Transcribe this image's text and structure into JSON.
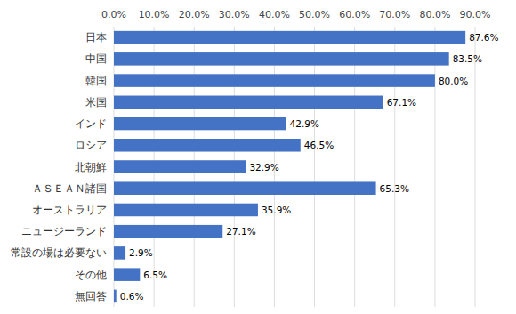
{
  "chart_data": {
    "type": "bar",
    "orientation": "horizontal",
    "categories": [
      "日本",
      "中国",
      "韓国",
      "米国",
      "インド",
      "ロシア",
      "北朝鮮",
      "ＡＳＥＡＮ諸国",
      "オーストラリア",
      "ニュージーランド",
      "常設の場は必要ない",
      "その他",
      "無回答"
    ],
    "values": [
      87.6,
      83.5,
      80.0,
      67.1,
      42.9,
      46.5,
      32.9,
      65.3,
      35.9,
      27.1,
      2.9,
      6.5,
      0.6
    ],
    "value_labels": [
      "87.6%",
      "83.5%",
      "80.0%",
      "67.1%",
      "42.9%",
      "46.5%",
      "32.9%",
      "65.3%",
      "35.9%",
      "27.1%",
      "2.9%",
      "6.5%",
      "0.6%"
    ],
    "color": "#4472C4",
    "xlim": [
      0,
      90
    ],
    "xticks": [
      {
        "value": 0,
        "label": "0.0%"
      },
      {
        "value": 10,
        "label": "10.0%"
      },
      {
        "value": 20,
        "label": "20.0%"
      },
      {
        "value": 30,
        "label": "30.0%"
      },
      {
        "value": 40,
        "label": "40.0%"
      },
      {
        "value": 50,
        "label": "50.0%"
      },
      {
        "value": 60,
        "label": "60.0%"
      },
      {
        "value": 70,
        "label": "70.0%"
      },
      {
        "value": 80,
        "label": "80.0%"
      },
      {
        "value": 90,
        "label": "90.0%"
      }
    ],
    "grid": true,
    "data_labels": true
  }
}
